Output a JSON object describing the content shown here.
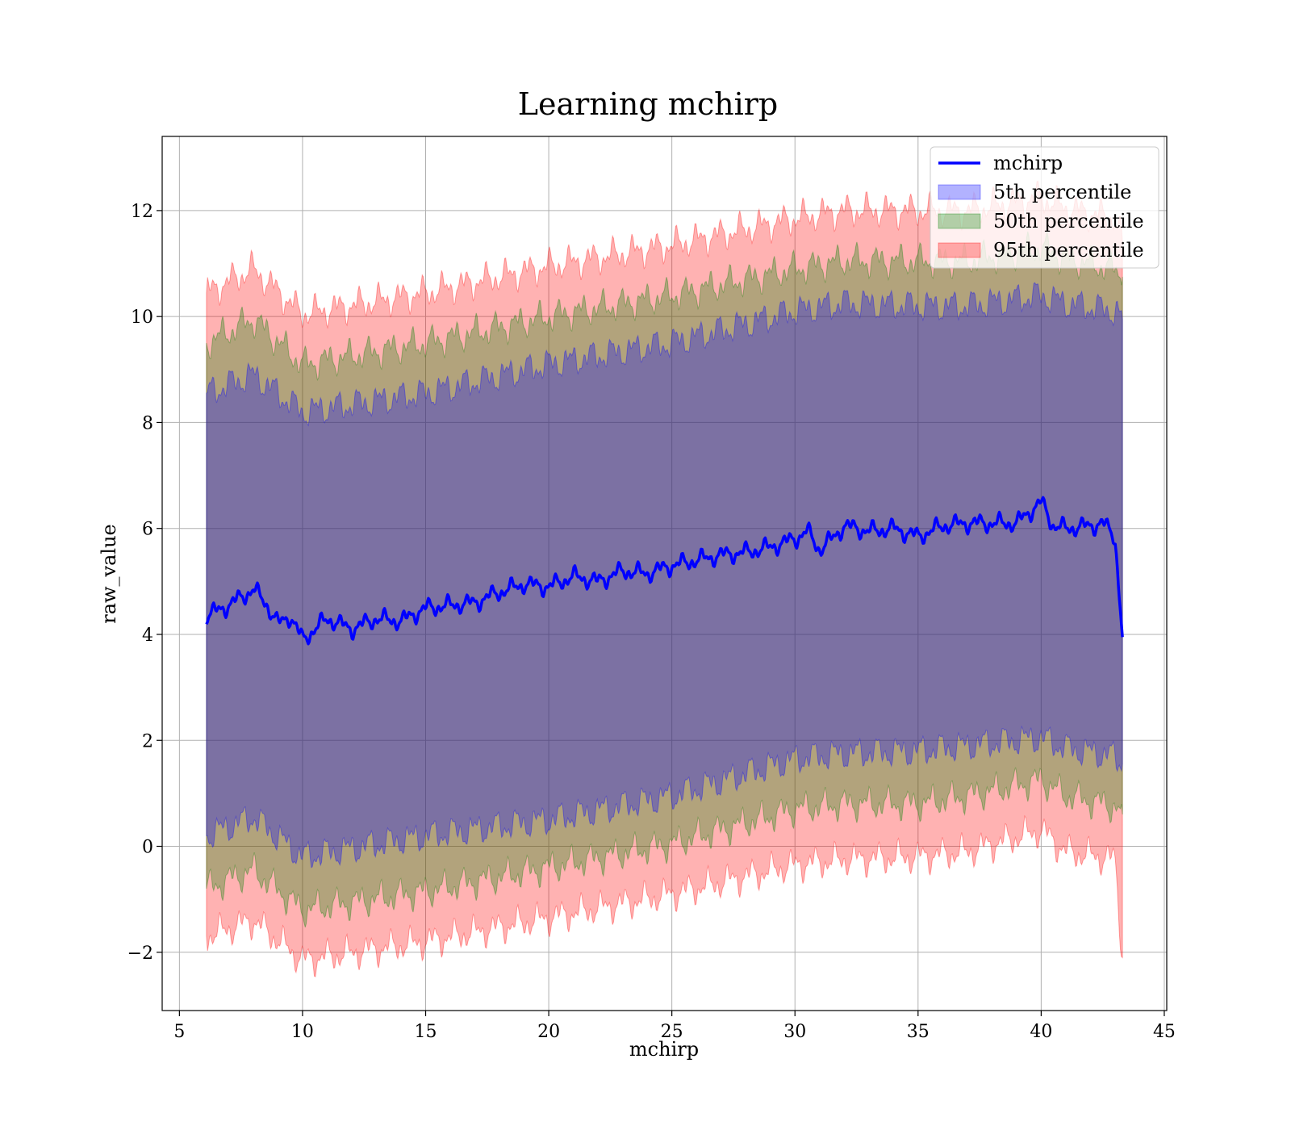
{
  "chart_data": {
    "type": "area",
    "title": "Learning mchirp",
    "xlabel": "mchirp",
    "ylabel": "raw_value",
    "xlim": [
      4.3,
      45.1
    ],
    "ylim": [
      -3.1,
      13.4
    ],
    "xticks": [
      5,
      10,
      15,
      20,
      25,
      30,
      35,
      40,
      45
    ],
    "yticks": [
      -2,
      0,
      2,
      4,
      6,
      8,
      10,
      12
    ],
    "ytick_labels": [
      "−2",
      "0",
      "2",
      "4",
      "6",
      "8",
      "10",
      "12"
    ],
    "grid": true,
    "legend_position": "top-right",
    "x_range": [
      6.1,
      43.3
    ],
    "line": {
      "name": "mchirp",
      "color": "#0000ff",
      "x": [
        6.1,
        7.0,
        8.0,
        8.5,
        9.0,
        9.5,
        10.0,
        11.0,
        12.0,
        13.0,
        14.0,
        15.0,
        16.0,
        17.0,
        18.0,
        19.0,
        20.0,
        21.0,
        22.0,
        23.0,
        24.0,
        25.0,
        26.0,
        27.0,
        28.0,
        29.0,
        30.0,
        30.5,
        31.0,
        31.5,
        32.0,
        33.0,
        34.0,
        35.0,
        36.0,
        37.0,
        38.0,
        39.0,
        40.0,
        40.5,
        41.0,
        42.0,
        42.5,
        43.0,
        43.3
      ],
      "y": [
        4.35,
        4.55,
        4.85,
        4.6,
        4.2,
        4.35,
        3.9,
        4.3,
        4.1,
        4.3,
        4.25,
        4.5,
        4.55,
        4.6,
        4.8,
        4.95,
        4.9,
        5.1,
        5.0,
        5.2,
        5.15,
        5.3,
        5.4,
        5.5,
        5.55,
        5.65,
        5.8,
        5.95,
        5.6,
        5.8,
        6.05,
        5.95,
        6.0,
        5.85,
        6.05,
        6.1,
        6.1,
        6.1,
        6.5,
        6.05,
        6.0,
        6.05,
        6.1,
        5.85,
        3.95
      ]
    },
    "bands": [
      {
        "name": "5th percentile",
        "color": "#0000ff",
        "x": [
          6.1,
          8.0,
          10.0,
          15.0,
          20.0,
          25.0,
          30.0,
          32.0,
          35.0,
          37.0,
          40.0,
          41.0,
          43.0,
          43.3
        ],
        "lower": [
          0.2,
          0.55,
          -0.2,
          0.2,
          0.5,
          0.95,
          1.65,
          1.75,
          1.8,
          1.9,
          2.05,
          1.85,
          1.7,
          1.55
        ],
        "upper": [
          8.55,
          8.9,
          8.2,
          8.55,
          9.1,
          9.5,
          10.1,
          10.25,
          10.2,
          10.2,
          10.4,
          10.25,
          10.1,
          9.95
        ]
      },
      {
        "name": "50th percentile",
        "color": "#008000",
        "x": [
          6.1,
          8.0,
          10.0,
          15.0,
          20.0,
          25.0,
          30.0,
          32.0,
          35.0,
          37.0,
          40.0,
          41.0,
          43.0,
          43.3
        ],
        "lower": [
          -0.8,
          -0.45,
          -1.2,
          -0.85,
          -0.4,
          0.05,
          0.7,
          0.8,
          0.8,
          0.95,
          1.25,
          0.95,
          0.75,
          0.6
        ],
        "upper": [
          9.5,
          9.95,
          9.1,
          9.5,
          10.0,
          10.4,
          10.9,
          11.05,
          11.05,
          11.05,
          11.3,
          11.1,
          10.9,
          10.75
        ]
      },
      {
        "name": "95th percentile",
        "color": "#ff0000",
        "x": [
          6.1,
          8.0,
          10.0,
          15.0,
          20.0,
          25.0,
          30.0,
          32.0,
          35.0,
          37.0,
          40.0,
          41.0,
          43.0,
          43.3
        ],
        "lower": [
          -1.7,
          -1.4,
          -2.15,
          -1.8,
          -1.35,
          -0.9,
          -0.35,
          -0.25,
          -0.2,
          -0.1,
          0.3,
          -0.1,
          -0.25,
          -2.1
        ],
        "upper": [
          10.45,
          10.9,
          10.05,
          10.45,
          10.95,
          11.35,
          11.85,
          12.0,
          12.0,
          12.0,
          12.25,
          12.05,
          11.85,
          11.4
        ]
      }
    ]
  }
}
